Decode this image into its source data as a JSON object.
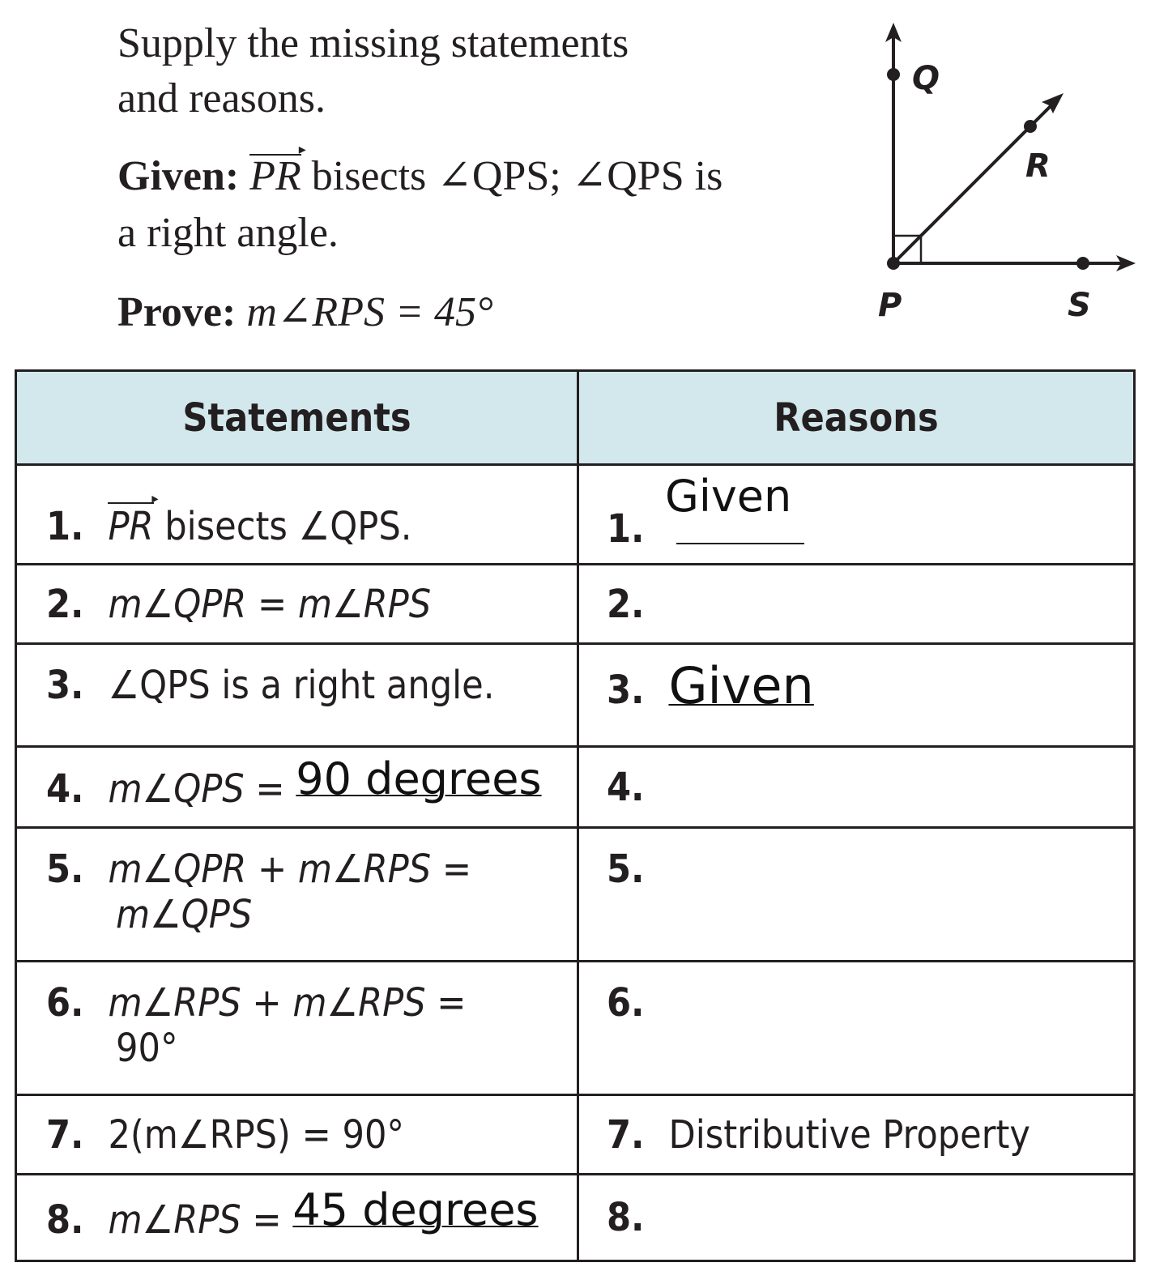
{
  "problem": {
    "instruction_line1": "Supply the missing statements",
    "instruction_line2": "and reasons.",
    "given_label": "Given:",
    "given_ray": "PR",
    "given_text1": " bisects ∠QPS; ∠QPS is",
    "given_text2": "a right angle.",
    "prove_label": "Prove:",
    "prove_text": "m∠RPS = 45°"
  },
  "diagram": {
    "labels": {
      "Q": "Q",
      "R": "R",
      "P": "P",
      "S": "S"
    }
  },
  "table": {
    "headers": [
      "Statements",
      "Reasons"
    ],
    "rows": [
      {
        "n": "1.",
        "statement_ray": "PR",
        "statement": " bisects ∠QPS.",
        "reason_n": "1.",
        "reason": "Given"
      },
      {
        "n": "2.",
        "statement": "m∠QPR = m∠RPS",
        "reason_n": "2.",
        "reason": ""
      },
      {
        "n": "3.",
        "statement": "∠QPS is a right angle.",
        "reason_n": "3.",
        "reason": "Given"
      },
      {
        "n": "4.",
        "statement": "m∠QPS = ",
        "answer": "90 degrees",
        "reason_n": "4.",
        "reason": ""
      },
      {
        "n": "5.",
        "statement": "m∠QPR + m∠RPS =",
        "statement2": "m∠QPS",
        "reason_n": "5.",
        "reason": ""
      },
      {
        "n": "6.",
        "statement": "m∠RPS + m∠RPS =",
        "statement2": "90°",
        "reason_n": "6.",
        "reason": ""
      },
      {
        "n": "7.",
        "statement": "2(m∠RPS) = 90°",
        "reason_n": "7.",
        "reason": "Distributive Property"
      },
      {
        "n": "8.",
        "statement": "m∠RPS = ",
        "answer": "45 degrees",
        "reason_n": "8.",
        "reason": ""
      }
    ]
  },
  "colors": {
    "header_bg": "#d3e8ec",
    "ink": "#231f20"
  }
}
